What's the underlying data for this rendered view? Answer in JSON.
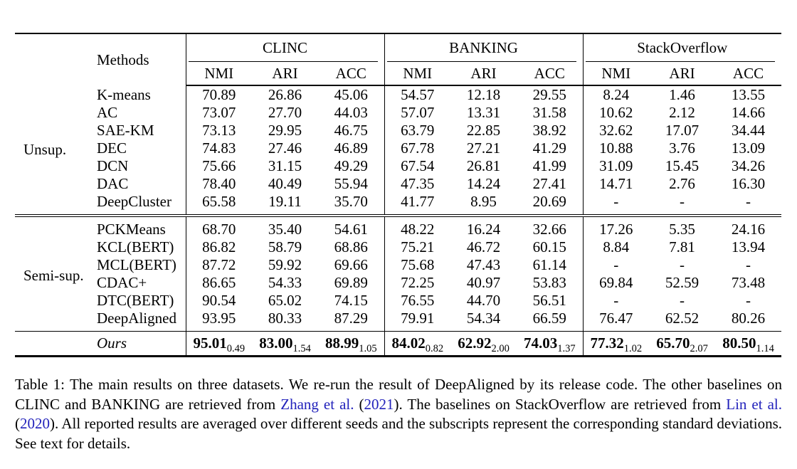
{
  "colors": {
    "citation_link": "#2222bb",
    "text": "#000000",
    "rule": "#000000"
  },
  "table": {
    "methods_header": "Methods",
    "datasets": [
      "CLINC",
      "BANKING",
      "StackOverflow"
    ],
    "metrics": [
      "NMI",
      "ARI",
      "ACC"
    ],
    "groups": [
      {
        "label": "Unsup.",
        "rows": [
          {
            "method": "K-means",
            "values": [
              "70.89",
              "26.86",
              "45.06",
              "54.57",
              "12.18",
              "29.55",
              "8.24",
              "1.46",
              "13.55"
            ]
          },
          {
            "method": "AC",
            "values": [
              "73.07",
              "27.70",
              "44.03",
              "57.07",
              "13.31",
              "31.58",
              "10.62",
              "2.12",
              "14.66"
            ]
          },
          {
            "method": "SAE-KM",
            "values": [
              "73.13",
              "29.95",
              "46.75",
              "63.79",
              "22.85",
              "38.92",
              "32.62",
              "17.07",
              "34.44"
            ]
          },
          {
            "method": "DEC",
            "values": [
              "74.83",
              "27.46",
              "46.89",
              "67.78",
              "27.21",
              "41.29",
              "10.88",
              "3.76",
              "13.09"
            ]
          },
          {
            "method": "DCN",
            "values": [
              "75.66",
              "31.15",
              "49.29",
              "67.54",
              "26.81",
              "41.99",
              "31.09",
              "15.45",
              "34.26"
            ]
          },
          {
            "method": "DAC",
            "values": [
              "78.40",
              "40.49",
              "55.94",
              "47.35",
              "14.24",
              "27.41",
              "14.71",
              "2.76",
              "16.30"
            ]
          },
          {
            "method": "DeepCluster",
            "values": [
              "65.58",
              "19.11",
              "35.70",
              "41.77",
              "8.95",
              "20.69",
              "-",
              "-",
              "-"
            ]
          }
        ]
      },
      {
        "label": "Semi-sup.",
        "rows": [
          {
            "method": "PCKMeans",
            "values": [
              "68.70",
              "35.40",
              "54.61",
              "48.22",
              "16.24",
              "32.66",
              "17.26",
              "5.35",
              "24.16"
            ]
          },
          {
            "method": "KCL(BERT)",
            "values": [
              "86.82",
              "58.79",
              "68.86",
              "75.21",
              "46.72",
              "60.15",
              "8.84",
              "7.81",
              "13.94"
            ]
          },
          {
            "method": "MCL(BERT)",
            "values": [
              "87.72",
              "59.92",
              "69.66",
              "75.68",
              "47.43",
              "61.14",
              "-",
              "-",
              "-"
            ]
          },
          {
            "method": "CDAC+",
            "values": [
              "86.65",
              "54.33",
              "69.89",
              "72.25",
              "40.97",
              "53.83",
              "69.84",
              "52.59",
              "73.48"
            ]
          },
          {
            "method": "DTC(BERT)",
            "values": [
              "90.54",
              "65.02",
              "74.15",
              "76.55",
              "44.70",
              "56.51",
              "-",
              "-",
              "-"
            ]
          },
          {
            "method": "DeepAligned",
            "values": [
              "93.95",
              "80.33",
              "87.29",
              "79.91",
              "54.34",
              "66.59",
              "76.47",
              "62.52",
              "80.26"
            ]
          }
        ]
      }
    ],
    "ours": {
      "label": "Ours",
      "values": [
        {
          "mean": "95.01",
          "std": "0.49"
        },
        {
          "mean": "83.00",
          "std": "1.54"
        },
        {
          "mean": "88.99",
          "std": "1.05"
        },
        {
          "mean": "84.02",
          "std": "0.82"
        },
        {
          "mean": "62.92",
          "std": "2.00"
        },
        {
          "mean": "74.03",
          "std": "1.37"
        },
        {
          "mean": "77.32",
          "std": "1.02"
        },
        {
          "mean": "65.70",
          "std": "2.07"
        },
        {
          "mean": "80.50",
          "std": "1.14"
        }
      ]
    }
  },
  "caption": {
    "parts": [
      {
        "text": "Table 1: The main results on three datasets. We re-run the result of DeepAligned by its release code. The other baselines on CLINC and BANKING are retrieved from ",
        "style": "normal"
      },
      {
        "text": "Zhang et al.",
        "style": "link"
      },
      {
        "text": " (",
        "style": "normal"
      },
      {
        "text": "2021",
        "style": "link"
      },
      {
        "text": "). The baselines on StackOverflow are retrieved from ",
        "style": "normal"
      },
      {
        "text": "Lin et al.",
        "style": "link"
      },
      {
        "text": " (",
        "style": "normal"
      },
      {
        "text": "2020",
        "style": "link"
      },
      {
        "text": "). All reported results are averaged over different seeds and the subscripts represent the corresponding standard deviations. See text for details.",
        "style": "normal"
      }
    ]
  }
}
